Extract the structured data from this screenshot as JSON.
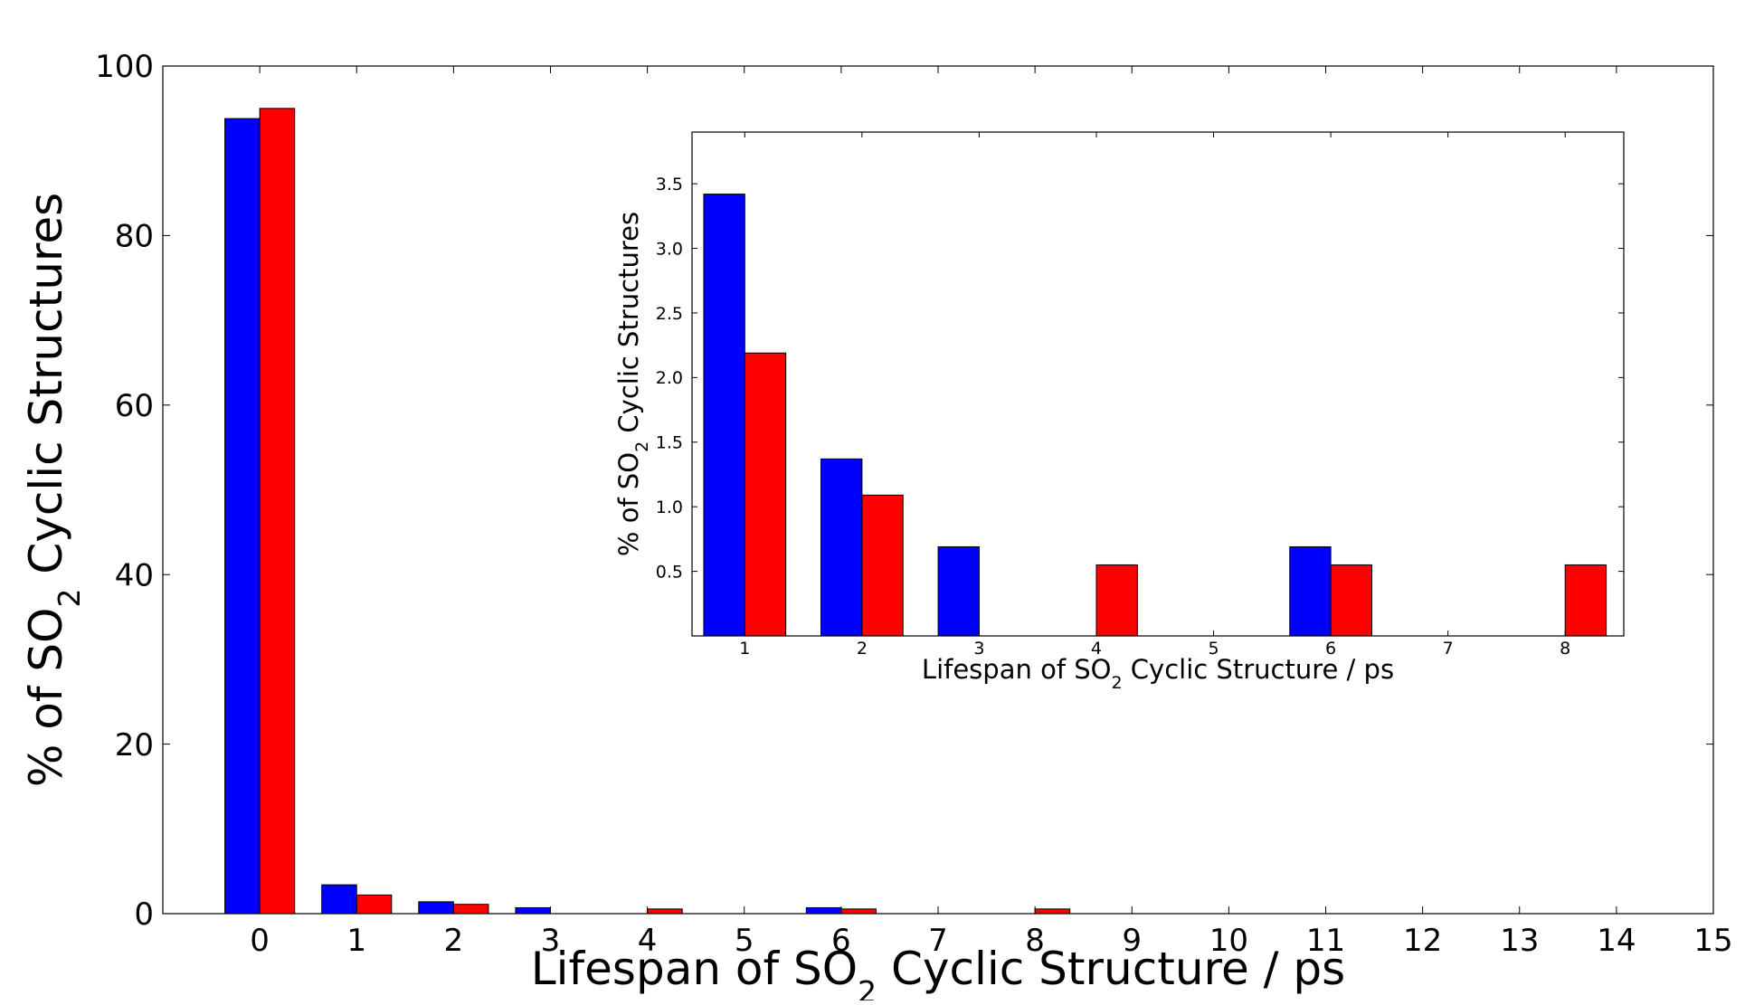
{
  "chart_data": [
    {
      "type": "bar",
      "role": "main",
      "categories": [
        "0",
        "1",
        "2",
        "3",
        "4",
        "5",
        "6",
        "7",
        "8",
        "9",
        "10",
        "11",
        "12",
        "13",
        "14"
      ],
      "xticks": [
        "0",
        "1",
        "2",
        "3",
        "4",
        "5",
        "6",
        "7",
        "8",
        "9",
        "10",
        "11",
        "12",
        "13",
        "14",
        "15"
      ],
      "yticks": [
        "0",
        "20",
        "40",
        "60",
        "80",
        "100"
      ],
      "xlabel": {
        "prefix": "Lifespan of SO",
        "sub": "2",
        "suffix": " Cyclic Structure / ps"
      },
      "ylabel": {
        "prefix": "% of SO",
        "sub": "2",
        "suffix": " Cyclic Structures"
      },
      "xlim": [
        -1,
        15
      ],
      "ylim": [
        0,
        100
      ],
      "series": [
        {
          "color": "#0000ff",
          "values": [
            93.8,
            3.4,
            1.4,
            0.7,
            0,
            0,
            0.7,
            0,
            0,
            0,
            0,
            0,
            0,
            0,
            0
          ]
        },
        {
          "color": "#ff0000",
          "values": [
            95.0,
            2.2,
            1.1,
            0,
            0.55,
            0,
            0.55,
            0,
            0.55,
            0,
            0,
            0,
            0,
            0,
            0
          ]
        }
      ]
    },
    {
      "type": "bar",
      "role": "inset",
      "categories": [
        "1",
        "2",
        "3",
        "4",
        "5",
        "6",
        "7",
        "8"
      ],
      "xticks": [
        "1",
        "2",
        "3",
        "4",
        "5",
        "6",
        "7",
        "8"
      ],
      "yticks": [
        "0.5",
        "1.0",
        "1.5",
        "2.0",
        "2.5",
        "3.0",
        "3.5"
      ],
      "xlabel": {
        "prefix": "Lifespan of SO",
        "sub": "2",
        "suffix": " Cyclic Structure / ps"
      },
      "ylabel": {
        "prefix": "% of SO",
        "sub": "2",
        "suffix": " Cyclic Structures"
      },
      "xlim": [
        0.55,
        8.5
      ],
      "ylim": [
        0,
        3.9
      ],
      "series": [
        {
          "color": "#0000ff",
          "values": [
            3.42,
            1.37,
            0.69,
            0,
            0,
            0.69,
            0,
            0
          ]
        },
        {
          "color": "#ff0000",
          "values": [
            2.19,
            1.09,
            0,
            0.55,
            0,
            0.55,
            0,
            0.55
          ]
        }
      ]
    }
  ]
}
